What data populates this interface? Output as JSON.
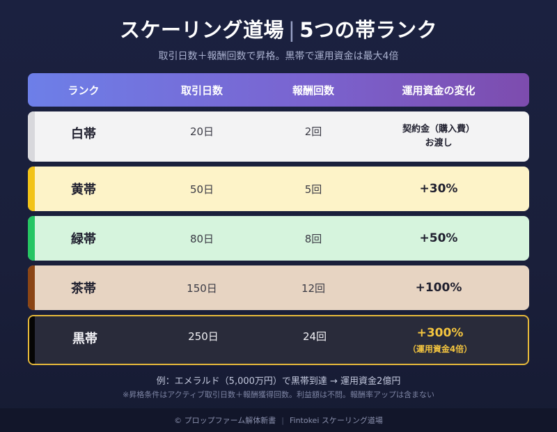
{
  "title": {
    "main": "スケーリング道場",
    "divider": "|",
    "sub": "5つの帯ランク"
  },
  "subtitle": "取引日数＋報酬回数で昇格。黒帯で運用資金は最大4倍",
  "header": {
    "rank": "ランク",
    "days": "取引日数",
    "payouts": "報酬回数",
    "capital": "運用資金の変化"
  },
  "colors": {
    "header_gradient": [
      "#6d7fe8",
      "#7d4cae"
    ],
    "white": "#d8d8dc",
    "yellow": "#f2c318",
    "green": "#26c563",
    "brown": "#8b4515",
    "black": "#050505",
    "gold_accent": "#e6b93a"
  },
  "rows": [
    {
      "rank": "白帯",
      "days": "20日",
      "payouts": "2回",
      "capital": "契約金（購入費）",
      "capital_sub": "お渡し"
    },
    {
      "rank": "黄帯",
      "days": "50日",
      "payouts": "5回",
      "capital": "+30%"
    },
    {
      "rank": "緑帯",
      "days": "80日",
      "payouts": "8回",
      "capital": "+50%"
    },
    {
      "rank": "茶帯",
      "days": "150日",
      "payouts": "12回",
      "capital": "+100%"
    },
    {
      "rank": "黒帯",
      "days": "250日",
      "payouts": "24回",
      "capital": "+300%",
      "capital_sub": "（運用資金4倍）"
    }
  ],
  "notes": {
    "example": "例：エメラルド（5,000万円）で黒帯到達 → 運用資金2億円",
    "disclaimer": "※昇格条件はアクティブ取引日数＋報酬獲得回数。利益額は不問。報酬率アップは含まない"
  },
  "footer": {
    "left": "© プロップファーム解体新書",
    "divider": "|",
    "right": "Fintokei スケーリング道場"
  }
}
